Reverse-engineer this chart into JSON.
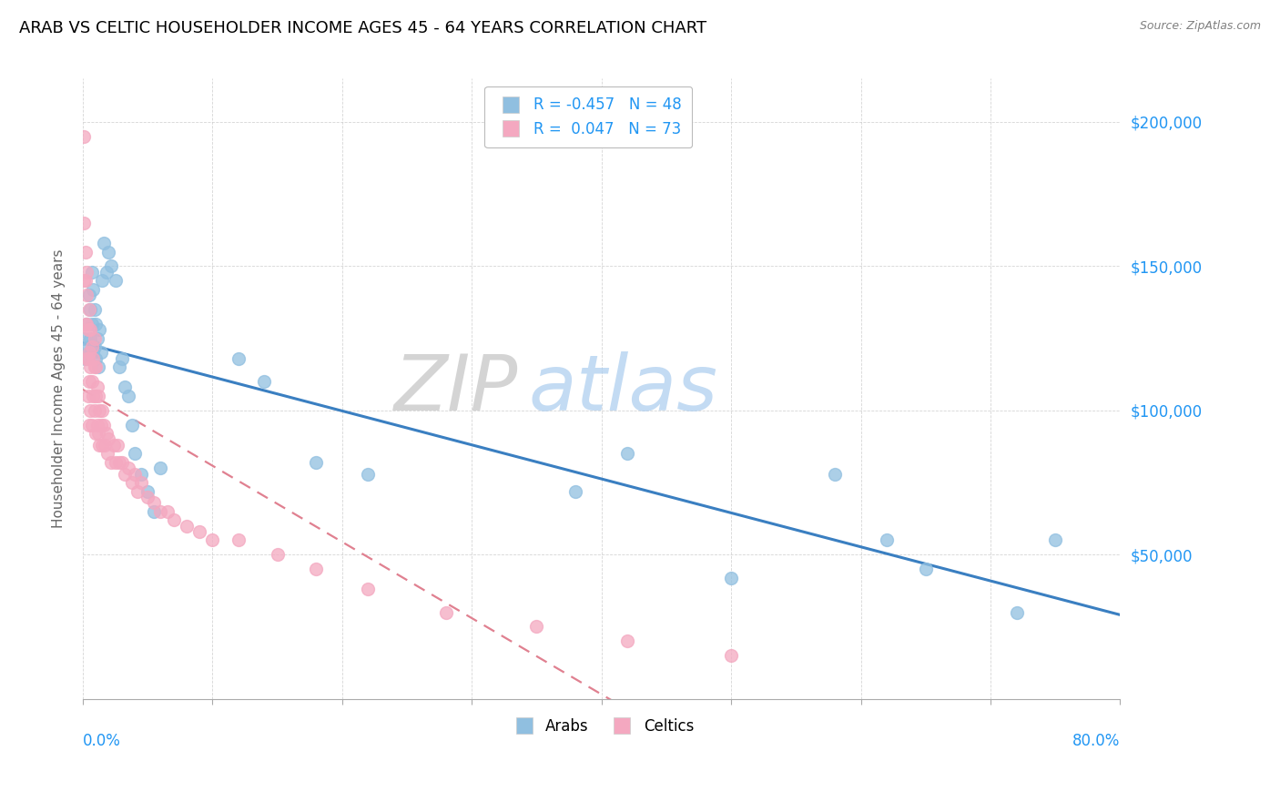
{
  "title": "ARAB VS CELTIC HOUSEHOLDER INCOME AGES 45 - 64 YEARS CORRELATION CHART",
  "source": "Source: ZipAtlas.com",
  "ylabel": "Householder Income Ages 45 - 64 years",
  "arab_R": -0.457,
  "arab_N": 48,
  "celtic_R": 0.047,
  "celtic_N": 73,
  "arab_color": "#90bfe0",
  "celtic_color": "#f4a8c0",
  "arab_line_color": "#3a7fc1",
  "celtic_line_color": "#e08090",
  "yaxis_values": [
    50000,
    100000,
    150000,
    200000
  ],
  "xlim": [
    0.0,
    0.8
  ],
  "ylim": [
    0,
    215000
  ],
  "arab_x": [
    0.001,
    0.002,
    0.003,
    0.004,
    0.005,
    0.005,
    0.006,
    0.006,
    0.007,
    0.007,
    0.008,
    0.008,
    0.009,
    0.009,
    0.01,
    0.01,
    0.011,
    0.012,
    0.013,
    0.014,
    0.015,
    0.016,
    0.018,
    0.02,
    0.022,
    0.025,
    0.028,
    0.03,
    0.032,
    0.035,
    0.038,
    0.04,
    0.045,
    0.05,
    0.055,
    0.06,
    0.12,
    0.14,
    0.18,
    0.22,
    0.38,
    0.42,
    0.5,
    0.58,
    0.62,
    0.65,
    0.72,
    0.75
  ],
  "arab_y": [
    125000,
    118000,
    130000,
    122000,
    140000,
    120000,
    135000,
    125000,
    148000,
    130000,
    142000,
    120000,
    135000,
    122000,
    130000,
    118000,
    125000,
    115000,
    128000,
    120000,
    145000,
    158000,
    148000,
    155000,
    150000,
    145000,
    115000,
    118000,
    108000,
    105000,
    95000,
    85000,
    78000,
    72000,
    65000,
    80000,
    118000,
    110000,
    82000,
    78000,
    72000,
    85000,
    42000,
    78000,
    55000,
    45000,
    30000,
    55000
  ],
  "celtic_x": [
    0.001,
    0.001,
    0.001,
    0.002,
    0.002,
    0.002,
    0.003,
    0.003,
    0.003,
    0.003,
    0.004,
    0.004,
    0.004,
    0.005,
    0.005,
    0.005,
    0.005,
    0.006,
    0.006,
    0.006,
    0.007,
    0.007,
    0.007,
    0.008,
    0.008,
    0.009,
    0.009,
    0.009,
    0.01,
    0.01,
    0.01,
    0.011,
    0.011,
    0.012,
    0.012,
    0.013,
    0.013,
    0.014,
    0.015,
    0.015,
    0.016,
    0.017,
    0.018,
    0.019,
    0.02,
    0.022,
    0.024,
    0.025,
    0.027,
    0.028,
    0.03,
    0.032,
    0.035,
    0.038,
    0.04,
    0.042,
    0.045,
    0.05,
    0.055,
    0.06,
    0.065,
    0.07,
    0.08,
    0.09,
    0.1,
    0.12,
    0.15,
    0.18,
    0.22,
    0.28,
    0.35,
    0.42,
    0.5
  ],
  "celtic_y": [
    195000,
    165000,
    145000,
    155000,
    145000,
    130000,
    148000,
    140000,
    130000,
    118000,
    128000,
    118000,
    105000,
    135000,
    120000,
    110000,
    95000,
    128000,
    115000,
    100000,
    122000,
    110000,
    95000,
    118000,
    105000,
    125000,
    115000,
    100000,
    115000,
    105000,
    92000,
    108000,
    95000,
    105000,
    92000,
    100000,
    88000,
    95000,
    100000,
    88000,
    95000,
    88000,
    92000,
    85000,
    90000,
    82000,
    88000,
    82000,
    88000,
    82000,
    82000,
    78000,
    80000,
    75000,
    78000,
    72000,
    75000,
    70000,
    68000,
    65000,
    65000,
    62000,
    60000,
    58000,
    55000,
    55000,
    50000,
    45000,
    38000,
    30000,
    25000,
    20000,
    15000
  ]
}
